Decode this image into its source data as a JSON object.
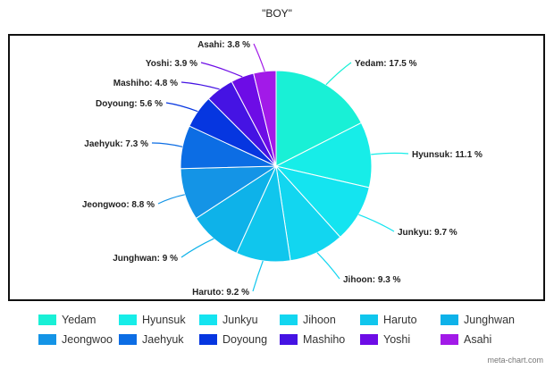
{
  "chart_data": {
    "type": "pie",
    "title": "\"BOY\"",
    "slices": [
      {
        "name": "Yedam",
        "value": 17.5,
        "label": "Yedam: 17.5 %",
        "color": "#19f0d6"
      },
      {
        "name": "Hyunsuk",
        "value": 11.1,
        "label": "Hyunsuk: 11.1 %",
        "color": "#17ede8"
      },
      {
        "name": "Junkyu",
        "value": 9.7,
        "label": "Junkyu: 9.7  %",
        "color": "#14e4f0"
      },
      {
        "name": "Jihoon",
        "value": 9.3,
        "label": "Jihoon: 9.3 %",
        "color": "#12d6f0"
      },
      {
        "name": "Haruto",
        "value": 9.2,
        "label": "Haruto: 9.2 %",
        "color": "#10c6ed"
      },
      {
        "name": "Junghwan",
        "value": 9,
        "label": "Junghwan: 9 %",
        "color": "#0eb2e9"
      },
      {
        "name": "Jeongwoo",
        "value": 8.8,
        "label": "Jeongwoo: 8.8 %",
        "color": "#1494e6"
      },
      {
        "name": "Jaehyuk",
        "value": 7.3,
        "label": "Jaehyuk: 7.3 %",
        "color": "#0c6de4"
      },
      {
        "name": "Doyoung",
        "value": 5.6,
        "label": "Doyoung: 5.6 %",
        "color": "#0636e0"
      },
      {
        "name": "Mashiho",
        "value": 4.8,
        "label": "Mashiho: 4.8 %",
        "color": "#4513e3"
      },
      {
        "name": "Yoshi",
        "value": 3.9,
        "label": "Yoshi: 3.9 %",
        "color": "#6d0ce6"
      },
      {
        "name": "Asahi",
        "value": 3.8,
        "label": "Asahi: 3.8 %",
        "color": "#a21ae8"
      }
    ],
    "legend_position": "bottom"
  },
  "watermark": "meta-chart.com"
}
